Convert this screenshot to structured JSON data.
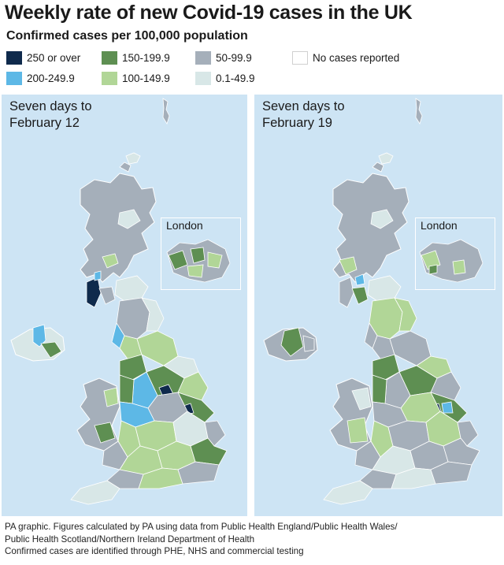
{
  "title": "Weekly rate of new Covid-19 cases in the UK",
  "subtitle": "Confirmed cases per 100,000 population",
  "legend": [
    {
      "label": "250 or over",
      "color": "#0f2a4c"
    },
    {
      "label": "200-249.9",
      "color": "#5db8e6"
    },
    {
      "label": "150-199.9",
      "color": "#5e8f52"
    },
    {
      "label": "100-149.9",
      "color": "#b1d697"
    },
    {
      "label": "50-99.9",
      "color": "#a5afba"
    },
    {
      "label": "0.1-49.9",
      "color": "#d8e7e7"
    },
    {
      "label": "No cases reported",
      "color": "#ffffff"
    }
  ],
  "panels": [
    {
      "label_line1": "Seven days to",
      "label_line2": "February 12",
      "inset_label": "London"
    },
    {
      "label_line1": "Seven days to",
      "label_line2": "February 19",
      "inset_label": "London"
    }
  ],
  "footer": {
    "line1": "PA graphic. Figures calculated by PA using data from Public Health England/Public Health Wales/",
    "line2": "Public Health Scotland/Northern Ireland Department of Health",
    "line3": "Confirmed cases are identified through PHE, NHS and commercial testing"
  }
}
